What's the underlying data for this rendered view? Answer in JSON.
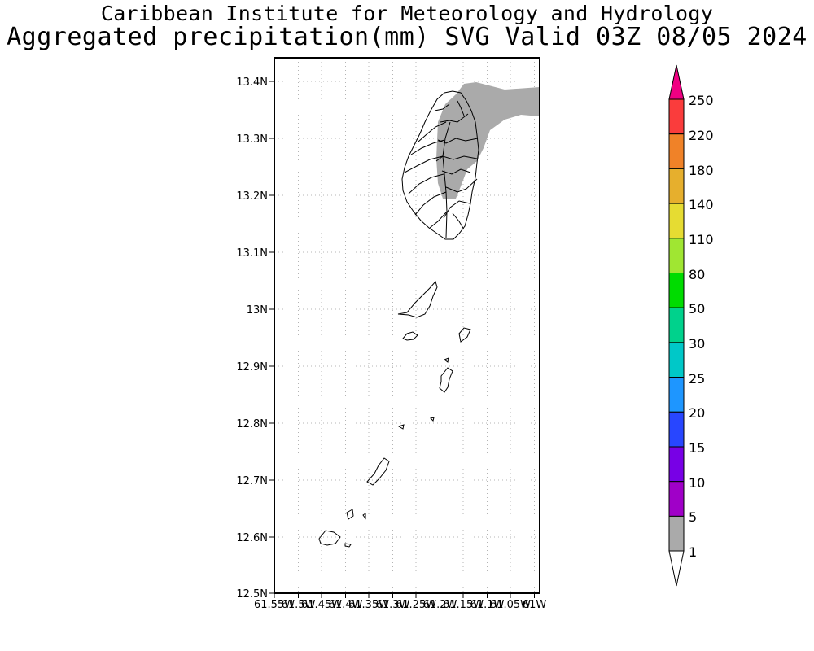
{
  "header": {
    "institute": "Caribbean Institute for Meteorology and Hydrology",
    "product": "Aggregated precipitation(mm) SVG Valid 03Z 08/05 2024"
  },
  "map": {
    "lat_ticks": [
      {
        "value": 13.4,
        "label": "13.4N"
      },
      {
        "value": 13.3,
        "label": "13.3N"
      },
      {
        "value": 13.2,
        "label": "13.2N"
      },
      {
        "value": 13.1,
        "label": "13.1N"
      },
      {
        "value": 13.0,
        "label": "13N"
      },
      {
        "value": 12.9,
        "label": "12.9N"
      },
      {
        "value": 12.8,
        "label": "12.8N"
      },
      {
        "value": 12.7,
        "label": "12.7N"
      },
      {
        "value": 12.6,
        "label": "12.6N"
      },
      {
        "value": 12.5,
        "label": "12.5N"
      }
    ],
    "lon_ticks": [
      {
        "value": -61.55,
        "label": "61.55W"
      },
      {
        "value": -61.5,
        "label": "61.5W"
      },
      {
        "value": -61.45,
        "label": "61.45W"
      },
      {
        "value": -61.4,
        "label": "61.4W"
      },
      {
        "value": -61.35,
        "label": "61.35W"
      },
      {
        "value": -61.3,
        "label": "61.3W"
      },
      {
        "value": -61.25,
        "label": "61.25W"
      },
      {
        "value": -61.2,
        "label": "61.2W"
      },
      {
        "value": -61.15,
        "label": "61.15W"
      },
      {
        "value": -61.1,
        "label": "61.1W"
      },
      {
        "value": -61.05,
        "label": "61.05W"
      },
      {
        "value": -61.0,
        "label": "61W"
      }
    ],
    "lat_range": [
      12.5,
      13.44
    ],
    "lon_range": [
      -61.55,
      -61.0
    ],
    "grid": true,
    "rain_color": "#aaaaaa"
  },
  "colorbar": {
    "levels": [
      "1",
      "5",
      "10",
      "15",
      "20",
      "25",
      "30",
      "50",
      "80",
      "110",
      "140",
      "180",
      "220",
      "250"
    ],
    "colors": [
      "#aaaaaa",
      "#a000c8",
      "#7800e6",
      "#2846ff",
      "#1e96ff",
      "#00c8c8",
      "#00d28c",
      "#00dc00",
      "#a0e632",
      "#e6dc32",
      "#e6af2d",
      "#f08228",
      "#fa3c3c",
      "#f00082"
    ],
    "under_color": "#ffffff",
    "over_color": "#f00082"
  }
}
